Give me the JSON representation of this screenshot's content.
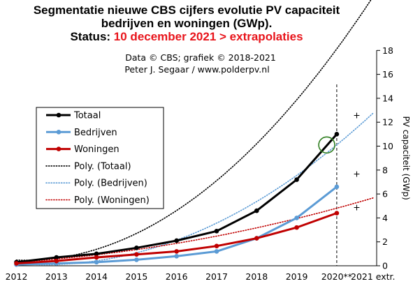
{
  "chart_data": {
    "type": "line",
    "title_lines": [
      "Segmentatie nieuwe CBS cijfers evolutie PV capaciteit",
      "bedrijven en woningen (GWp)."
    ],
    "status_prefix": "Status:",
    "status_highlight": "10 december 2021 > extrapolaties",
    "credits": [
      "Data © CBS; grafiek © 2018-2021",
      "Peter J. Segaar / www.polderpv.nl"
    ],
    "ylabel": "PV capaciteit (GWp)",
    "ylim": [
      0,
      18
    ],
    "y_ticks": [
      0,
      2,
      4,
      6,
      8,
      10,
      12,
      14,
      16,
      18
    ],
    "x_tick_labels": [
      "2012",
      "2013",
      "2014",
      "2015",
      "2016",
      "2017",
      "2018",
      "2019",
      "2020**",
      "2021 extr."
    ],
    "x": [
      2012,
      2013,
      2014,
      2015,
      2016,
      2017,
      2018,
      2019,
      2020
    ],
    "grid": false,
    "legend_position": "left",
    "series": [
      {
        "name": "Totaal",
        "color": "#000000",
        "values": [
          0.3,
          0.7,
          1.0,
          1.5,
          2.1,
          2.9,
          4.6,
          7.2,
          11.0
        ]
      },
      {
        "name": "Bedrijven",
        "color": "#5b9bd5",
        "values": [
          0.1,
          0.2,
          0.3,
          0.5,
          0.8,
          1.2,
          2.3,
          4.0,
          6.6
        ]
      },
      {
        "name": "Woningen",
        "color": "#c00000",
        "values": [
          0.2,
          0.4,
          0.7,
          0.95,
          1.2,
          1.65,
          2.3,
          3.2,
          4.4
        ]
      }
    ],
    "trendlines": [
      {
        "name": "Poly. (Totaal)",
        "color": "#000000",
        "coef": [
          0.2928,
          -0.7219,
          0.9076
        ]
      },
      {
        "name": "Poly. (Bedrijven)",
        "color": "#5b9bd5",
        "coef": [
          0.1879,
          -0.6383,
          0.6333
        ]
      },
      {
        "name": "Poly. (Woningen)",
        "color": "#c00000",
        "coef": [
          0.0428,
          0.1355,
          0.1262
        ]
      }
    ],
    "extrapolation_marks": [
      {
        "series": "Totaal",
        "x": 2020.5,
        "y": 12.6
      },
      {
        "series": "Bedrijven",
        "x": 2020.5,
        "y": 7.7
      },
      {
        "series": "Woningen",
        "x": 2020.5,
        "y": 4.9
      }
    ],
    "marker_symbol": "+",
    "highlight_circle": {
      "x": 2019.75,
      "y": 10.1
    },
    "divider_x": 2020,
    "colors": {
      "status": "#e8141b",
      "circle": "#2e7d1e",
      "x_last_label": "#e8141b"
    }
  }
}
